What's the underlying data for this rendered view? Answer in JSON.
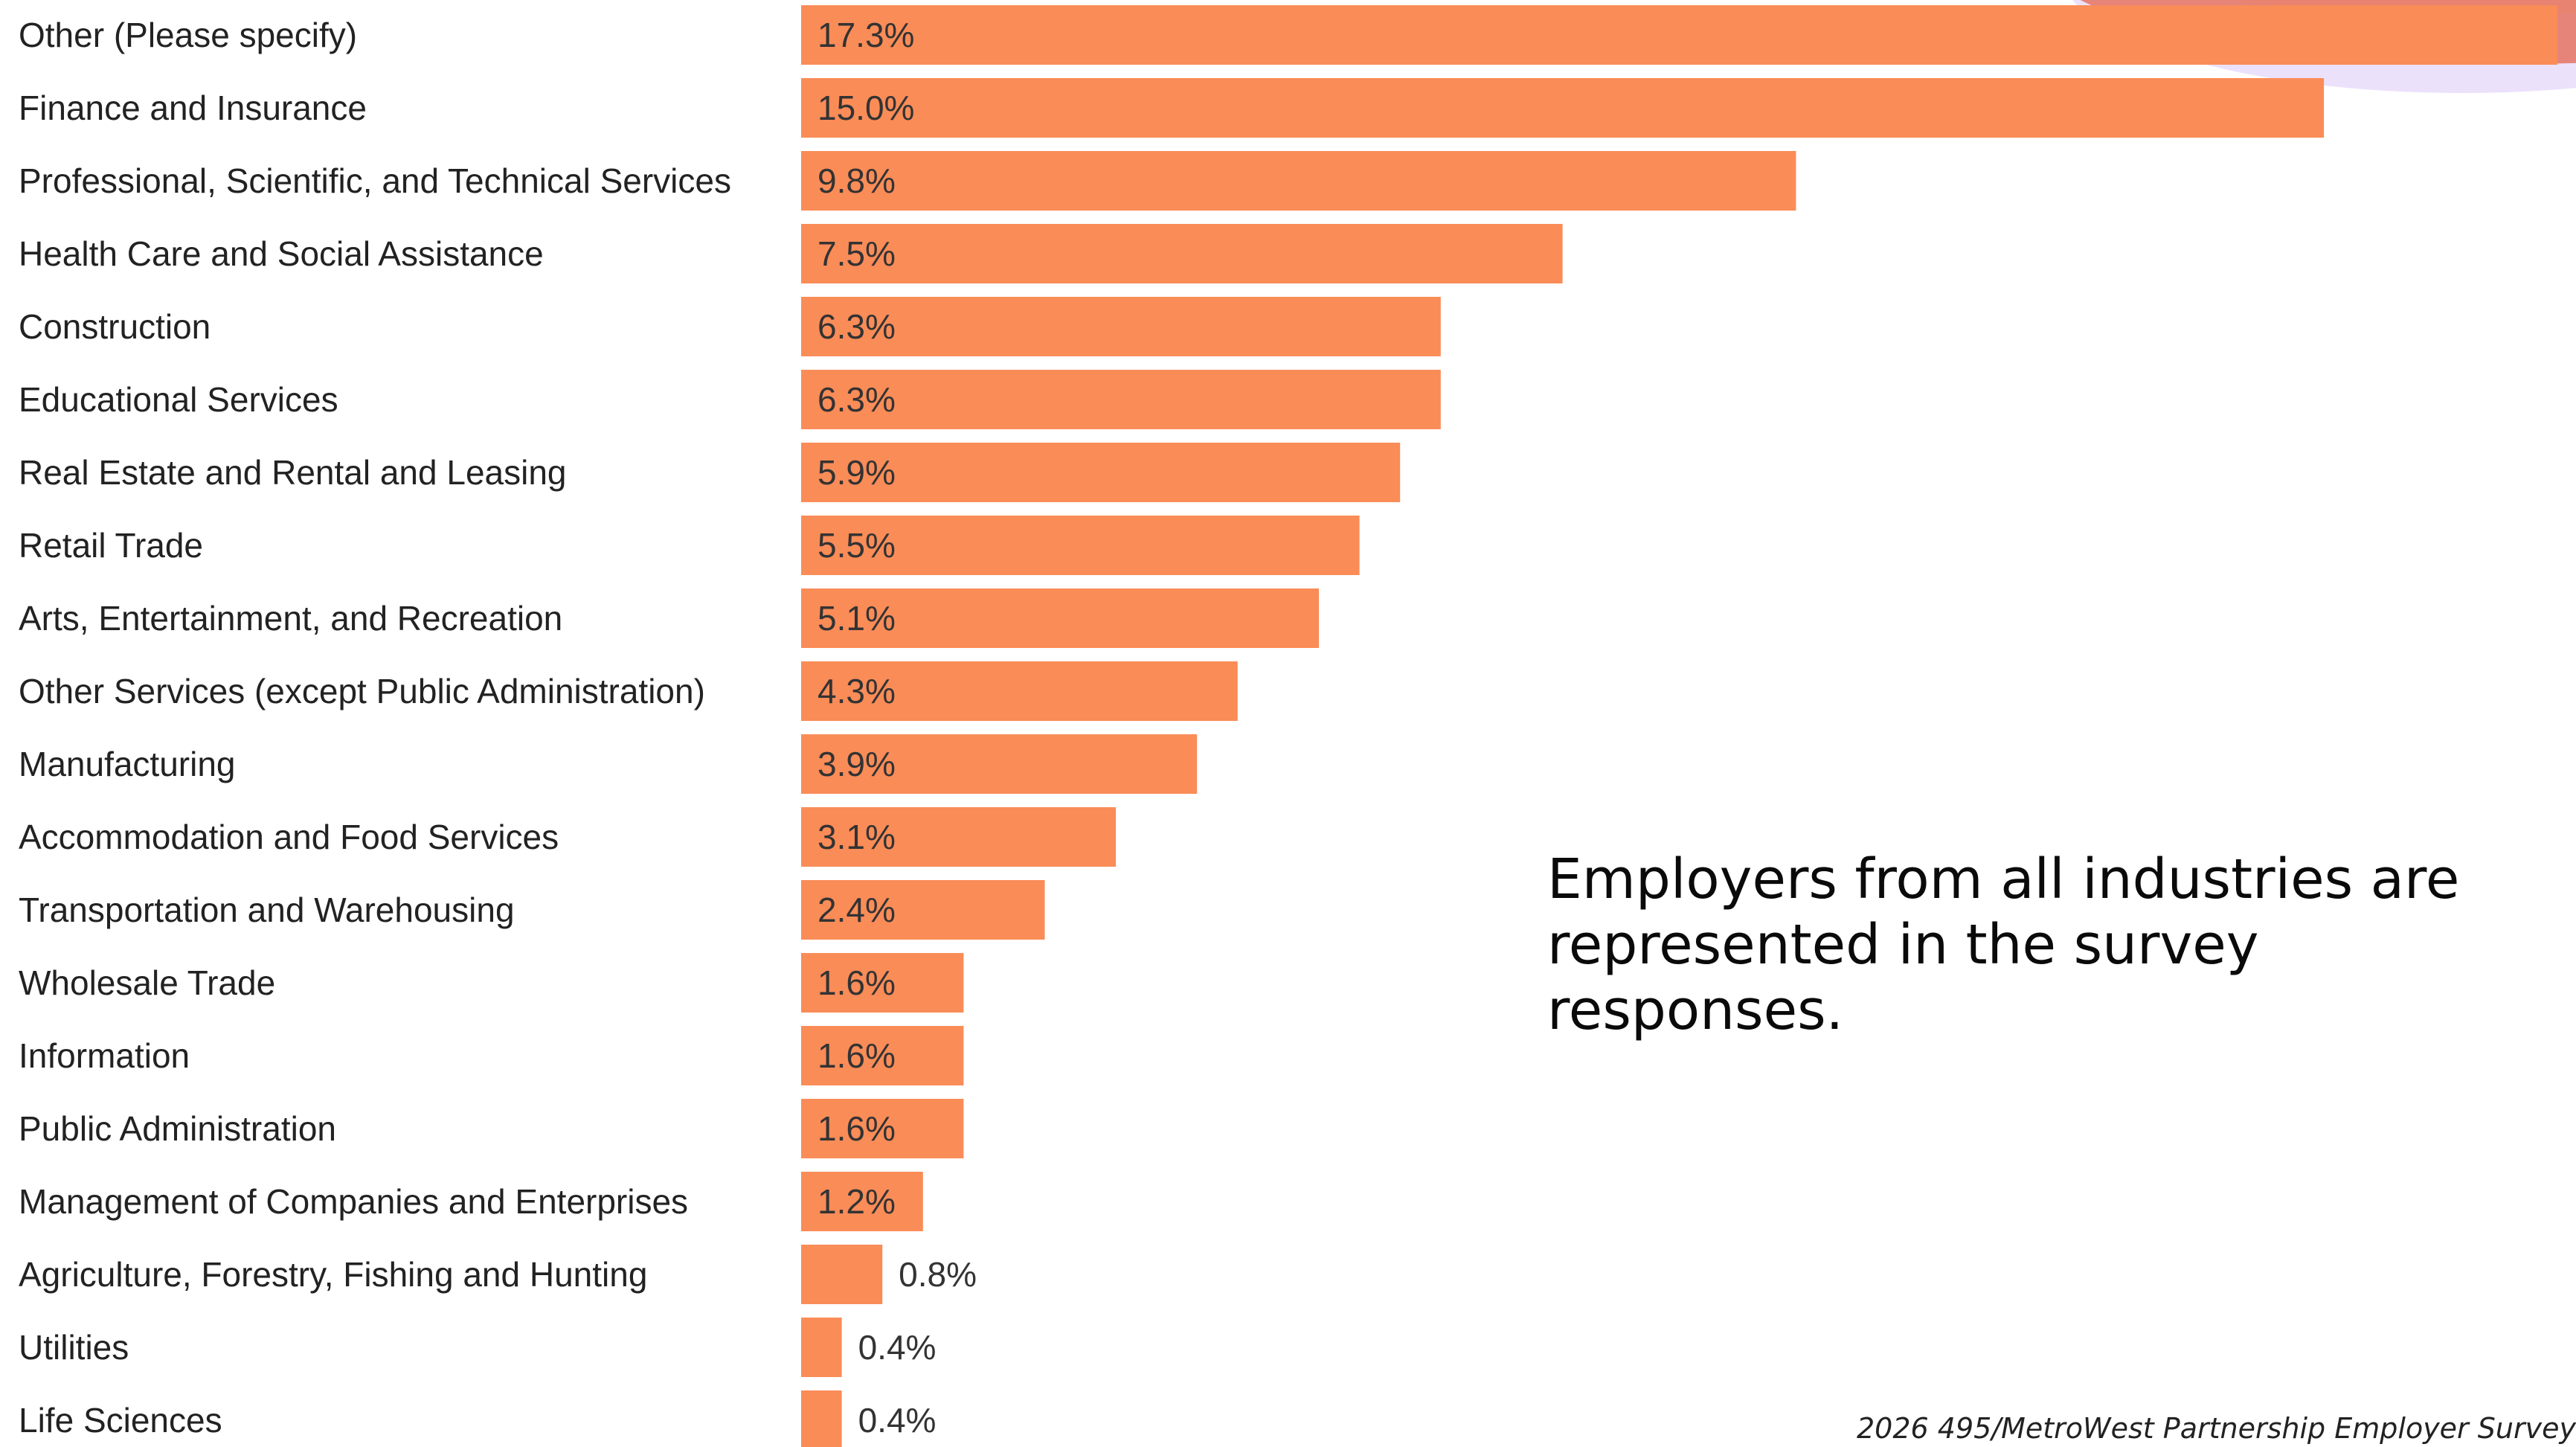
{
  "slide": {
    "headline": "Employers from all industries are represented in the survey responses.",
    "footer": "2026 495/MetroWest Partnership Employer Survey"
  },
  "colors": {
    "bar": "#fa8c58",
    "accent_arc_coral": "#e77a6a",
    "accent_arc_lavender": "#ece1fb",
    "accent_arc_peach": "#f8d6b0"
  },
  "chart_data": {
    "type": "bar",
    "orientation": "horizontal",
    "value_suffix": "%",
    "xlim": [
      0,
      17.3
    ],
    "grid": false,
    "legend": "none",
    "categories": [
      "Other (Please specify)",
      "Finance and Insurance",
      "Professional, Scientific, and Technical Services",
      "Health Care and Social Assistance",
      "Construction",
      "Educational Services",
      "Real Estate and Rental and Leasing",
      "Retail Trade",
      "Arts, Entertainment, and Recreation",
      "Other Services (except Public Administration)",
      "Manufacturing",
      "Accommodation and Food Services",
      "Transportation and Warehousing",
      "Wholesale Trade",
      "Information",
      "Public Administration",
      "Management of Companies and Enterprises",
      "Agriculture, Forestry, Fishing and Hunting",
      "Utilities",
      "Life Sciences"
    ],
    "values": [
      17.3,
      15.0,
      9.8,
      7.5,
      6.3,
      6.3,
      5.9,
      5.5,
      5.1,
      4.3,
      3.9,
      3.1,
      2.4,
      1.6,
      1.6,
      1.6,
      1.2,
      0.8,
      0.4,
      0.4
    ],
    "data_labels": [
      "17.3%",
      "15.0%",
      "9.8%",
      "7.5%",
      "6.3%",
      "6.3%",
      "5.9%",
      "5.5%",
      "5.1%",
      "4.3%",
      "3.9%",
      "3.1%",
      "2.4%",
      "1.6%",
      "1.6%",
      "1.6%",
      "1.2%",
      "0.8%",
      "0.4%",
      "0.4%"
    ]
  }
}
